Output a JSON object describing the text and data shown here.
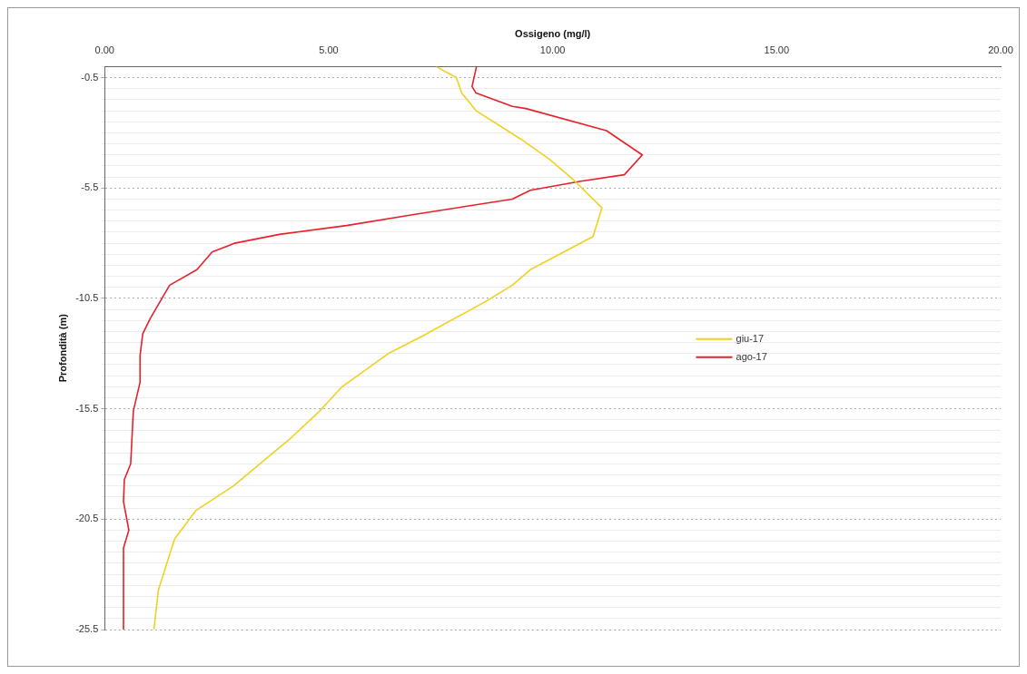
{
  "chart_data": {
    "type": "line",
    "xlabel": "Ossigeno (mg/l)",
    "ylabel": "Profondità (m)",
    "xlim": [
      0,
      20
    ],
    "xticks": [
      {
        "value": 0,
        "label": "0.00"
      },
      {
        "value": 5,
        "label": "5.00"
      },
      {
        "value": 10,
        "label": "10.00"
      },
      {
        "value": 15,
        "label": "15.00"
      },
      {
        "value": 20,
        "label": "20.00"
      }
    ],
    "ylim": [
      -25.5,
      0
    ],
    "yticks": [
      {
        "value": 0,
        "label": null
      },
      {
        "value": -0.5,
        "label": "-0.5"
      },
      {
        "value": -1,
        "label": null
      },
      {
        "value": -1.5,
        "label": null
      },
      {
        "value": -2,
        "label": null
      },
      {
        "value": -2.5,
        "label": null
      },
      {
        "value": -3,
        "label": null
      },
      {
        "value": -3.5,
        "label": null
      },
      {
        "value": -4,
        "label": null
      },
      {
        "value": -4.5,
        "label": null
      },
      {
        "value": -5,
        "label": null
      },
      {
        "value": -5.5,
        "label": "-5.5"
      },
      {
        "value": -6,
        "label": null
      },
      {
        "value": -6.5,
        "label": null
      },
      {
        "value": -7,
        "label": null
      },
      {
        "value": -7.5,
        "label": null
      },
      {
        "value": -8,
        "label": null
      },
      {
        "value": -8.5,
        "label": null
      },
      {
        "value": -9,
        "label": null
      },
      {
        "value": -9.5,
        "label": null
      },
      {
        "value": -10,
        "label": null
      },
      {
        "value": -10.5,
        "label": "-10.5"
      },
      {
        "value": -11,
        "label": null
      },
      {
        "value": -11.5,
        "label": null
      },
      {
        "value": -12,
        "label": null
      },
      {
        "value": -12.5,
        "label": null
      },
      {
        "value": -13,
        "label": null
      },
      {
        "value": -13.5,
        "label": null
      },
      {
        "value": -14,
        "label": null
      },
      {
        "value": -14.5,
        "label": null
      },
      {
        "value": -15,
        "label": null
      },
      {
        "value": -15.5,
        "label": "-15.5"
      },
      {
        "value": -16,
        "label": null
      },
      {
        "value": -16.5,
        "label": null
      },
      {
        "value": -17,
        "label": null
      },
      {
        "value": -17.5,
        "label": null
      },
      {
        "value": -18,
        "label": null
      },
      {
        "value": -18.5,
        "label": null
      },
      {
        "value": -19,
        "label": null
      },
      {
        "value": -19.5,
        "label": null
      },
      {
        "value": -20,
        "label": null
      },
      {
        "value": -20.5,
        "label": "-20.5"
      },
      {
        "value": -21,
        "label": null
      },
      {
        "value": -21.5,
        "label": null
      },
      {
        "value": -22,
        "label": null
      },
      {
        "value": -22.5,
        "label": null
      },
      {
        "value": -23,
        "label": null
      },
      {
        "value": -23.5,
        "label": null
      },
      {
        "value": -24,
        "label": null
      },
      {
        "value": -24.5,
        "label": null
      },
      {
        "value": -25,
        "label": null
      },
      {
        "value": -25.5,
        "label": "-25.5"
      }
    ],
    "grid": "y",
    "legend": "right",
    "series": [
      {
        "name": "giu-17",
        "color": "#f0d020",
        "x": [
          7.4,
          7.85,
          7.97,
          8.29,
          8.68,
          9.3,
          9.93,
          10.45,
          11.1,
          10.9,
          9.5,
          9.1,
          8.54,
          7.1,
          6.33,
          5.3,
          4.8,
          4.17,
          2.87,
          2.04,
          1.56,
          1.2,
          1.1
        ],
        "values": [
          0,
          -0.5,
          -1.2,
          -2.0,
          -2.5,
          -3.3,
          -4.2,
          -5.1,
          -6.4,
          -7.7,
          -9.2,
          -9.9,
          -10.6,
          -12.2,
          -13.0,
          -14.5,
          -15.6,
          -16.8,
          -19.0,
          -20.1,
          -21.4,
          -23.7,
          -25.5
        ]
      },
      {
        "name": "ago-17",
        "color": "#e8202a",
        "x": [
          8.3,
          8.2,
          8.29,
          9.1,
          9.4,
          11.2,
          12.0,
          11.6,
          10.6,
          9.5,
          9.1,
          6.9,
          5.4,
          3.9,
          2.9,
          2.4,
          2.06,
          1.45,
          1.02,
          0.85,
          0.79,
          0.79,
          0.64,
          0.58,
          0.44,
          0.42,
          0.54,
          0.42,
          0.42
        ],
        "values": [
          0,
          -0.9,
          -1.2,
          -1.8,
          -1.9,
          -2.9,
          -4.0,
          -4.9,
          -5.2,
          -5.6,
          -6.0,
          -6.7,
          -7.2,
          -7.6,
          -8.0,
          -8.4,
          -9.2,
          -9.9,
          -11.4,
          -12.1,
          -13.1,
          -14.3,
          -15.6,
          -18.0,
          -18.7,
          -19.7,
          -21.0,
          -21.8,
          -25.5
        ]
      }
    ]
  }
}
